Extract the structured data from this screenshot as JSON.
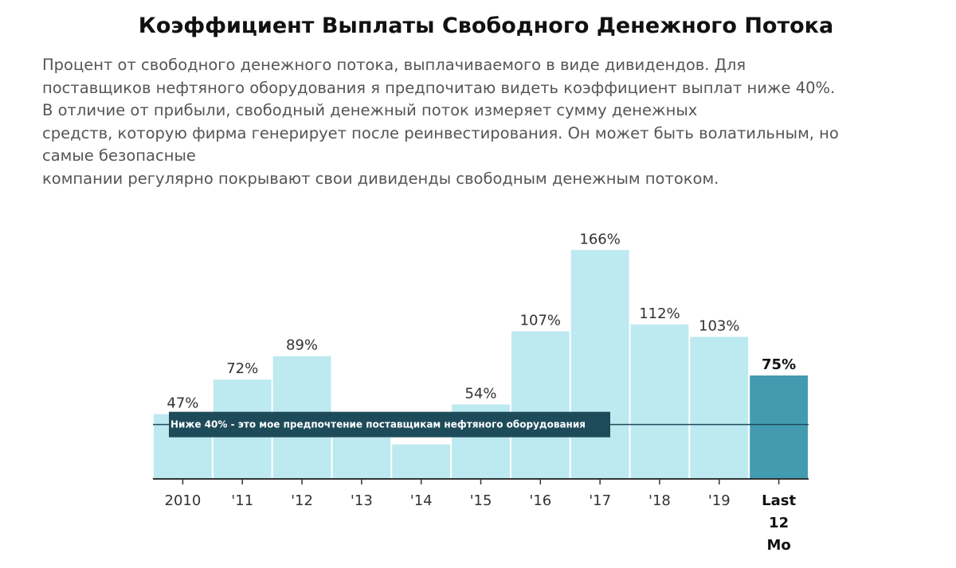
{
  "title": "Коэффициент Выплаты Свободного Денежного Потока",
  "description_lines": [
    "Процент от свободного денежного потока, выплачиваемого в виде дивидендов. Для",
    "поставщиков нефтяного оборудования я предпочитаю видеть коэффициент выплат ниже 40%.",
    "В отличие от прибыли, свободный денежный поток измеряет сумму денежных",
    "средств, которую фирма генерирует после реинвестирования. Он может быть волатильным, но",
    "самые безопасные",
    "компании регулярно покрывают свои дивиденды свободным денежным потоком."
  ],
  "colors": {
    "bar": "#bde9f0",
    "bar_highlight": "#439bb0",
    "reference_line": "#1e4b5a",
    "axis": "#333333"
  },
  "chart_data": {
    "type": "bar",
    "categories": [
      "2010",
      "'11",
      "'12",
      "'13",
      "'14",
      "'15",
      "'16",
      "'17",
      "'18",
      "'19",
      "Last 12 Mo"
    ],
    "values": [
      47,
      72,
      89,
      30,
      25,
      54,
      107,
      166,
      112,
      103,
      75
    ],
    "value_labels": [
      "47%",
      "72%",
      "89%",
      "",
      "",
      "54%",
      "107%",
      "166%",
      "112%",
      "103%",
      "75%"
    ],
    "highlight_index": 10,
    "unit": "%",
    "ylim": [
      0,
      183
    ],
    "reference_line": {
      "value": 40,
      "label": "Ниже 40% - это мое предпочтение поставщикам нефтяного оборудования"
    },
    "grid": false,
    "legend": "none"
  }
}
